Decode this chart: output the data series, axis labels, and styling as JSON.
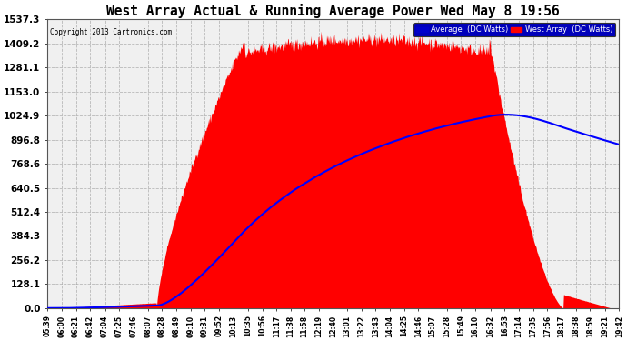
{
  "title": "West Array Actual & Running Average Power Wed May 8 19:56",
  "copyright": "Copyright 2013 Cartronics.com",
  "legend_labels": [
    "Average  (DC Watts)",
    "West Array  (DC Watts)"
  ],
  "legend_colors": [
    "#0000cc",
    "#ff0000"
  ],
  "legend_bg": "#0000cc",
  "background_color": "#ffffff",
  "plot_bg_color": "#f0f0f0",
  "grid_color": "#aaaaaa",
  "fill_color": "#ff0000",
  "line_color": "#0000ff",
  "ylim": [
    0,
    1537.3
  ],
  "yticks": [
    0.0,
    128.1,
    256.2,
    384.3,
    512.4,
    640.5,
    768.6,
    896.8,
    1024.9,
    1153.0,
    1281.1,
    1409.2,
    1537.3
  ],
  "ytick_labels": [
    "0.0",
    "128.1",
    "256.2",
    "384.3",
    "512.4",
    "640.5",
    "768.6",
    "896.8",
    "1024.9",
    "1153.0",
    "1281.1",
    "1409.2",
    "1537.3"
  ],
  "xtick_labels": [
    "05:39",
    "06:00",
    "06:21",
    "06:42",
    "07:04",
    "07:25",
    "07:46",
    "08:07",
    "08:28",
    "08:49",
    "09:10",
    "09:31",
    "09:52",
    "10:13",
    "10:35",
    "10:56",
    "11:17",
    "11:38",
    "11:58",
    "12:19",
    "12:40",
    "13:01",
    "13:22",
    "13:43",
    "14:04",
    "14:25",
    "14:46",
    "15:07",
    "15:28",
    "15:49",
    "16:10",
    "16:32",
    "16:53",
    "17:14",
    "17:35",
    "17:56",
    "18:17",
    "18:38",
    "18:59",
    "19:21",
    "19:42"
  ]
}
